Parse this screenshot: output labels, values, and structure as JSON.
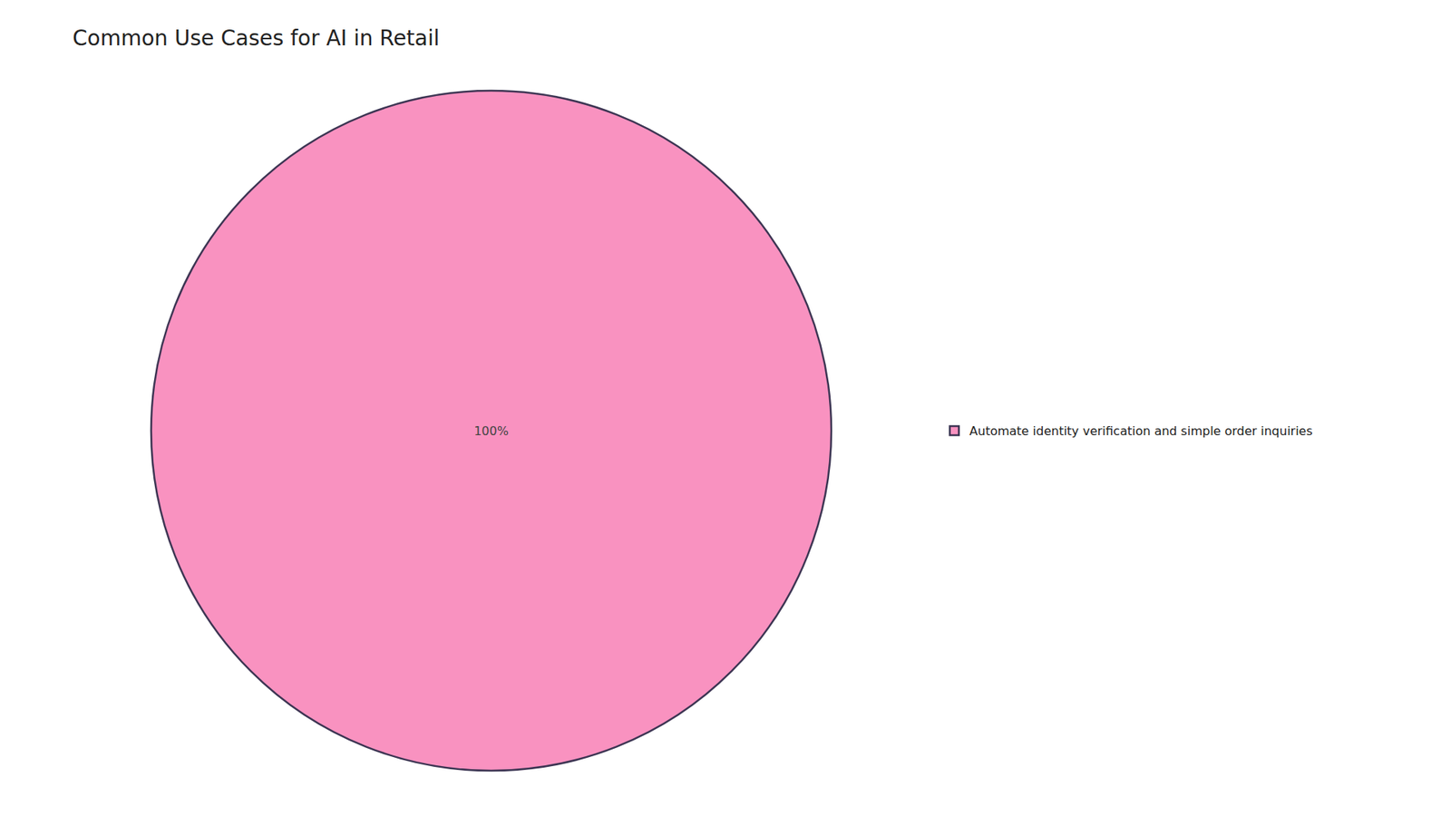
{
  "chart_data": {
    "type": "pie",
    "title": "Common Use Cases for AI in Retail",
    "categories": [
      "Automate identity verification and simple order inquiries"
    ],
    "values": [
      100
    ],
    "value_labels": [
      "100%"
    ],
    "data_labels": true,
    "colors": [
      "#F992C0"
    ],
    "legend": "right"
  }
}
